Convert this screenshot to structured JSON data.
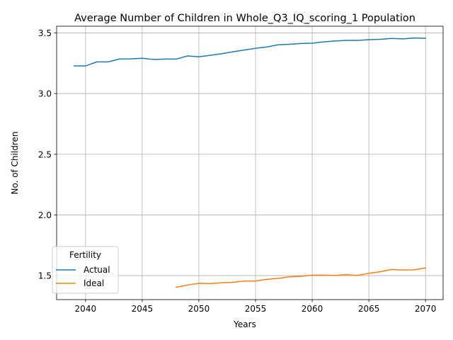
{
  "chart_data": {
    "type": "line",
    "title": "Average Number of Children in Whole_Q3_IQ_scoring_1 Population",
    "xlabel": "Years",
    "ylabel": "No. of Children",
    "xlim": [
      2037.45,
      2071.55
    ],
    "ylim": [
      1.302,
      3.555
    ],
    "xticks": [
      2040,
      2045,
      2050,
      2055,
      2060,
      2065,
      2070
    ],
    "yticks": [
      1.5,
      2.0,
      2.5,
      3.0,
      3.5
    ],
    "xtick_labels": [
      "2040",
      "2045",
      "2050",
      "2055",
      "2060",
      "2065",
      "2070"
    ],
    "ytick_labels": [
      "1.5",
      "2.0",
      "2.5",
      "3.0",
      "3.5"
    ],
    "grid": true,
    "legend": {
      "title": "Fertility",
      "placement": "lower-left"
    },
    "series": [
      {
        "name": "Actual",
        "color": "#1f77b4",
        "x": [
          2039,
          2040,
          2041,
          2042,
          2043,
          2044,
          2045,
          2046,
          2047,
          2048,
          2049,
          2050,
          2051,
          2052,
          2053,
          2054,
          2055,
          2056,
          2057,
          2058,
          2059,
          2060,
          2061,
          2062,
          2063,
          2064,
          2065,
          2066,
          2067,
          2068,
          2069,
          2070
        ],
        "values": [
          3.228,
          3.228,
          3.261,
          3.261,
          3.285,
          3.286,
          3.291,
          3.281,
          3.284,
          3.284,
          3.31,
          3.303,
          3.315,
          3.328,
          3.344,
          3.359,
          3.373,
          3.384,
          3.402,
          3.406,
          3.413,
          3.415,
          3.426,
          3.433,
          3.438,
          3.438,
          3.444,
          3.447,
          3.454,
          3.451,
          3.458,
          3.455
        ]
      },
      {
        "name": "Ideal",
        "color": "#ff7f0e",
        "x": [
          2048,
          2049,
          2050,
          2051,
          2052,
          2053,
          2054,
          2055,
          2056,
          2057,
          2058,
          2059,
          2060,
          2061,
          2062,
          2063,
          2064,
          2065,
          2066,
          2067,
          2068,
          2069,
          2070
        ],
        "values": [
          1.404,
          1.422,
          1.436,
          1.434,
          1.441,
          1.445,
          1.455,
          1.455,
          1.469,
          1.477,
          1.49,
          1.494,
          1.504,
          1.504,
          1.502,
          1.508,
          1.502,
          1.519,
          1.532,
          1.551,
          1.546,
          1.548,
          1.563
        ]
      }
    ]
  }
}
